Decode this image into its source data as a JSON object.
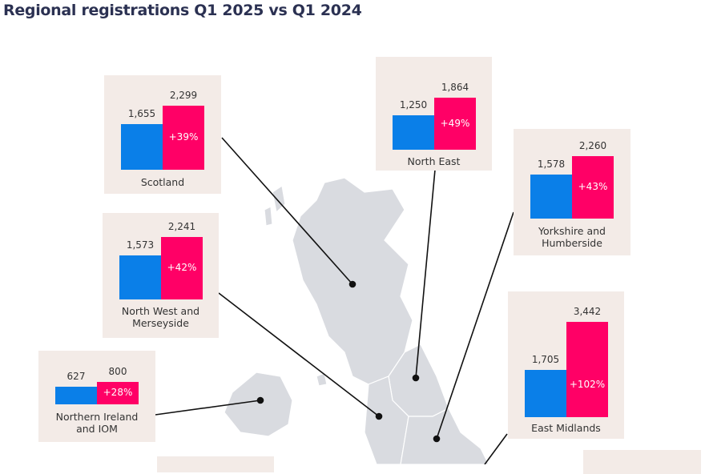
{
  "chart_data": {
    "type": "bar",
    "title": "Regional registrations Q1 2025 vs Q1 2024",
    "series_names": [
      "Q1 2024",
      "Q1 2025"
    ],
    "colors": {
      "q1_2024": "#0a7fe8",
      "q1_2025": "#ff0066",
      "card": "#f3ebe7",
      "map": "#d9dbe0"
    },
    "regions": [
      {
        "id": "scotland",
        "name": "Scotland",
        "q1_2024": 1655,
        "q1_2024_label": "1,655",
        "q1_2025": 2299,
        "q1_2025_label": "2,299",
        "change": "+39%"
      },
      {
        "id": "north-east",
        "name": "North East",
        "q1_2024": 1250,
        "q1_2024_label": "1,250",
        "q1_2025": 1864,
        "q1_2025_label": "1,864",
        "change": "+49%"
      },
      {
        "id": "yorkshire",
        "name": "Yorkshire and Humberside",
        "q1_2024": 1578,
        "q1_2024_label": "1,578",
        "q1_2025": 2260,
        "q1_2025_label": "2,260",
        "change": "+43%"
      },
      {
        "id": "north-west",
        "name": "North West and Merseyside",
        "q1_2024": 1573,
        "q1_2024_label": "1,573",
        "q1_2025": 2241,
        "q1_2025_label": "2,241",
        "change": "+42%"
      },
      {
        "id": "northern-ireland",
        "name": "Northern Ireland and IOM",
        "q1_2024": 627,
        "q1_2024_label": "627",
        "q1_2025": 800,
        "q1_2025_label": "800",
        "change": "+28%"
      },
      {
        "id": "east-midlands",
        "name": "East Midlands",
        "q1_2024": 1705,
        "q1_2024_label": "1,705",
        "q1_2025": 3442,
        "q1_2025_label": "3,442",
        "change": "+102%"
      }
    ]
  }
}
